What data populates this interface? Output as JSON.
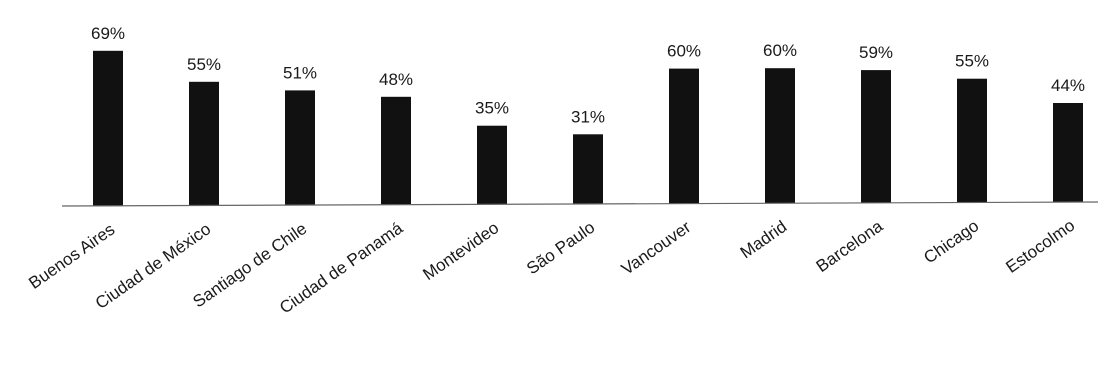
{
  "chart_data": {
    "type": "bar",
    "title": "",
    "xlabel": "",
    "ylabel": "",
    "categories": [
      "Buenos Aires",
      "Ciudad de México",
      "Santiago de Chile",
      "Ciudad de Panamá",
      "Montevideo",
      "São Paulo",
      "Vancouver",
      "Madrid",
      "Barcelona",
      "Chicago",
      "Estocolmo"
    ],
    "values": [
      69,
      55,
      51,
      48,
      35,
      31,
      60,
      60,
      59,
      55,
      44
    ],
    "value_labels": [
      "69%",
      "55%",
      "51%",
      "48%",
      "35%",
      "31%",
      "60%",
      "60%",
      "59%",
      "55%",
      "44%"
    ],
    "ylim": [
      0,
      75
    ],
    "grid": false,
    "legend": "none",
    "colors": {
      "bar": "#111111",
      "text": "#1a1a1a",
      "baseline": "#666666"
    }
  }
}
